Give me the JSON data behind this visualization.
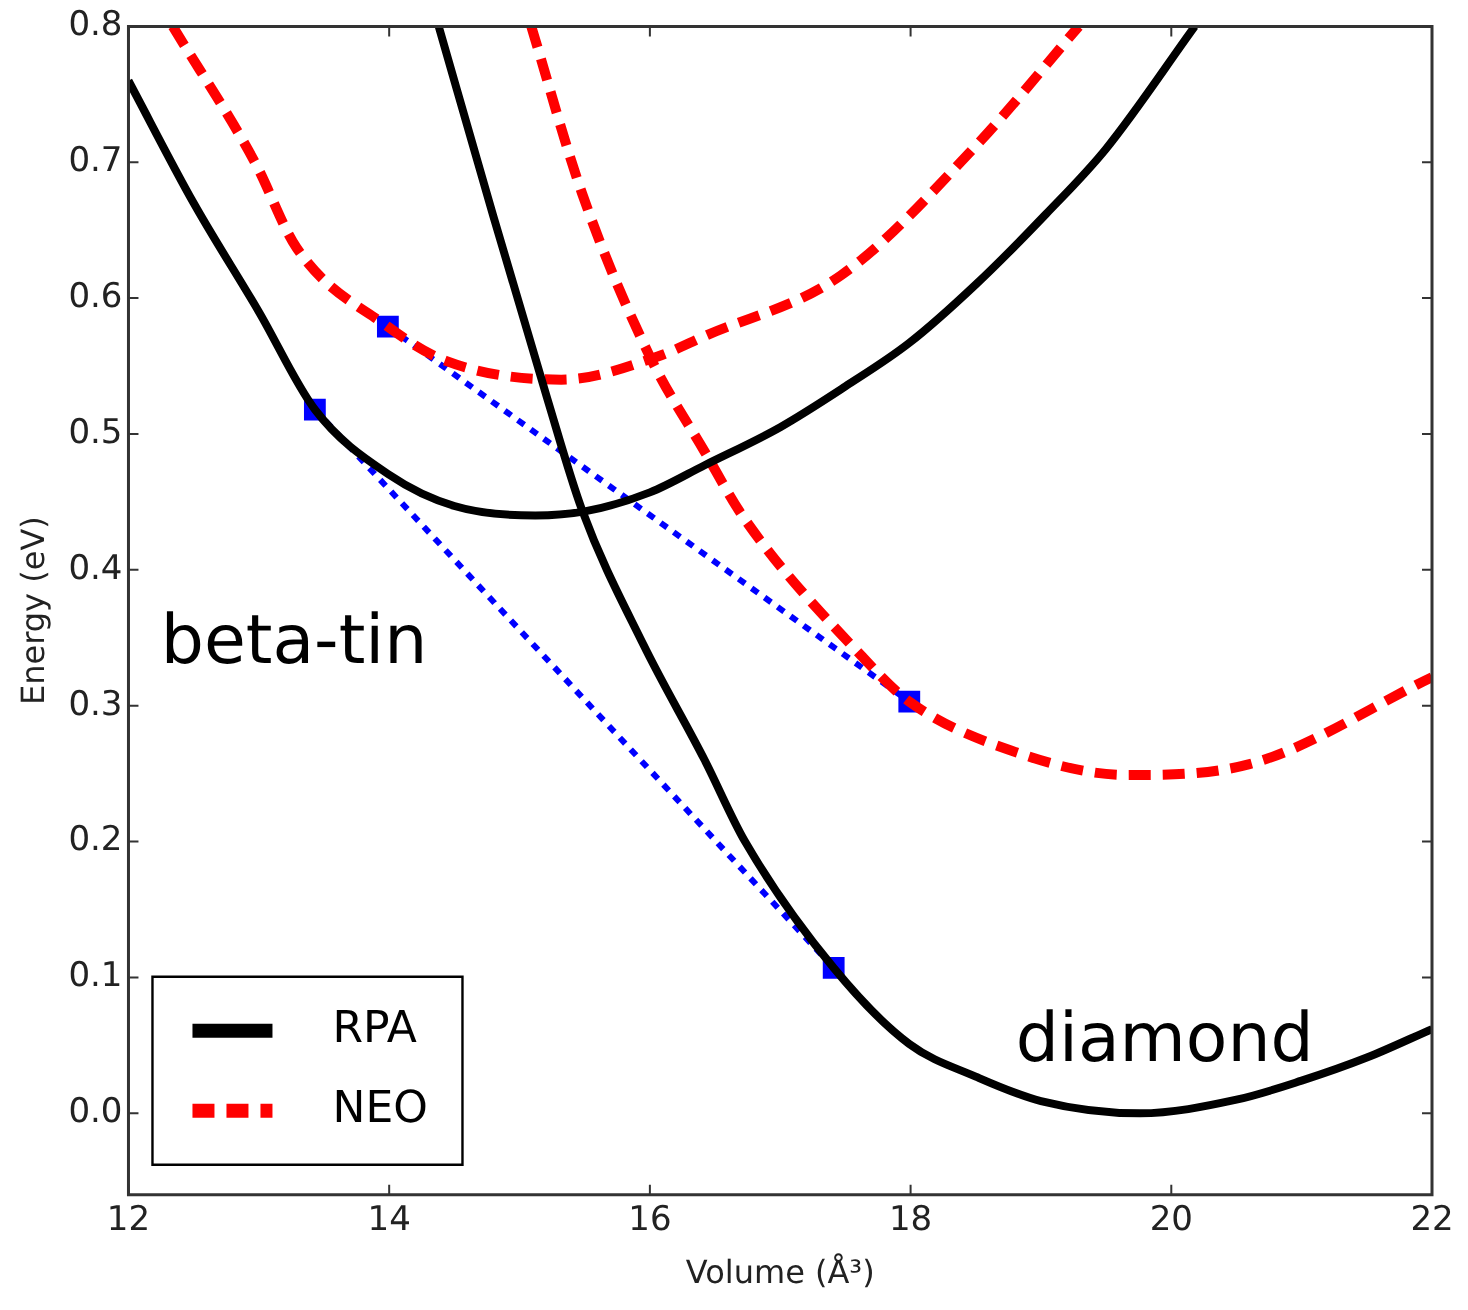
{
  "chart_data": {
    "type": "line",
    "xlabel": "Volume (Å³)",
    "ylabel": "Energy (eV)",
    "xlim": [
      12,
      22
    ],
    "xticks": [
      12,
      14,
      16,
      18,
      20,
      22
    ],
    "ylim": [
      -0.06,
      0.8
    ],
    "yticks": [
      {
        "value": 0,
        "label": "0.0"
      },
      {
        "value": 0.1,
        "label": "0.1"
      },
      {
        "value": 0.2,
        "label": "0.2"
      },
      {
        "value": 0.3,
        "label": "0.3"
      },
      {
        "value": 0.4,
        "label": "0.4"
      },
      {
        "value": 0.5,
        "label": "0.5"
      },
      {
        "value": 0.6,
        "label": "0.6"
      },
      {
        "value": 0.7,
        "label": "0.7"
      },
      {
        "value": 0.8,
        "label": "0.8"
      }
    ],
    "grid": false,
    "legend": "bottom left",
    "series": [
      {
        "name": "RPA",
        "color": "#000000",
        "line_style": "solid",
        "x": [
          12,
          12.5,
          13,
          13.43,
          14,
          14.5,
          15.12,
          15.5,
          16,
          16.42,
          17,
          17.5,
          17.99,
          18.5,
          19.04,
          19.5,
          20.18
        ],
        "values": [
          0.76,
          0.67,
          0.59,
          0.518,
          0.47,
          0.447,
          0.44,
          0.443,
          0.457,
          0.477,
          0.505,
          0.535,
          0.567,
          0.61,
          0.662,
          0.71,
          0.8
        ]
      },
      {
        "color": "#000000",
        "line_style": "solid",
        "x": [
          14.38,
          14.8,
          15.21,
          15.48,
          15.95,
          16.42,
          16.73,
          17.41,
          17.99,
          18.5,
          19,
          19.76,
          20.5,
          21,
          21.5,
          22
        ],
        "values": [
          0.8,
          0.66,
          0.527,
          0.444,
          0.345,
          0.26,
          0.2,
          0.107,
          0.051,
          0.027,
          0.009,
          0,
          0.01,
          0.024,
          0.041,
          0.062
        ]
      },
      {
        "name": "NEO",
        "color": "#ff0000",
        "line_style": "dashed",
        "x": [
          12.34,
          12.97,
          13.29,
          13.99,
          14.43,
          15.32,
          16.06,
          16.42,
          17.47,
          18.5,
          19.29
        ],
        "values": [
          0.8,
          0.7,
          0.637,
          0.579,
          0.554,
          0.54,
          0.557,
          0.572,
          0.617,
          0.712,
          0.8
        ]
      },
      {
        "color": "#ff0000",
        "line_style": "dashed",
        "x": [
          15.09,
          15.48,
          16,
          16.42,
          16.73,
          17.63,
          17.99,
          18.77,
          19.66,
          20.6,
          22
        ],
        "values": [
          0.8,
          0.677,
          0.557,
          0.487,
          0.437,
          0.336,
          0.303,
          0.267,
          0.249,
          0.257,
          0.321
        ]
      },
      {
        "color": "#0000ff",
        "line_style": "dotted",
        "marker": "square",
        "x": [
          13.43,
          17.41
        ],
        "values": [
          0.518,
          0.107
        ]
      },
      {
        "color": "#0000ff",
        "line_style": "dotted",
        "marker": "square",
        "x": [
          13.99,
          17.99
        ],
        "values": [
          0.579,
          0.303
        ]
      }
    ],
    "annotations": [
      "beta-tin",
      "diamond"
    ]
  }
}
